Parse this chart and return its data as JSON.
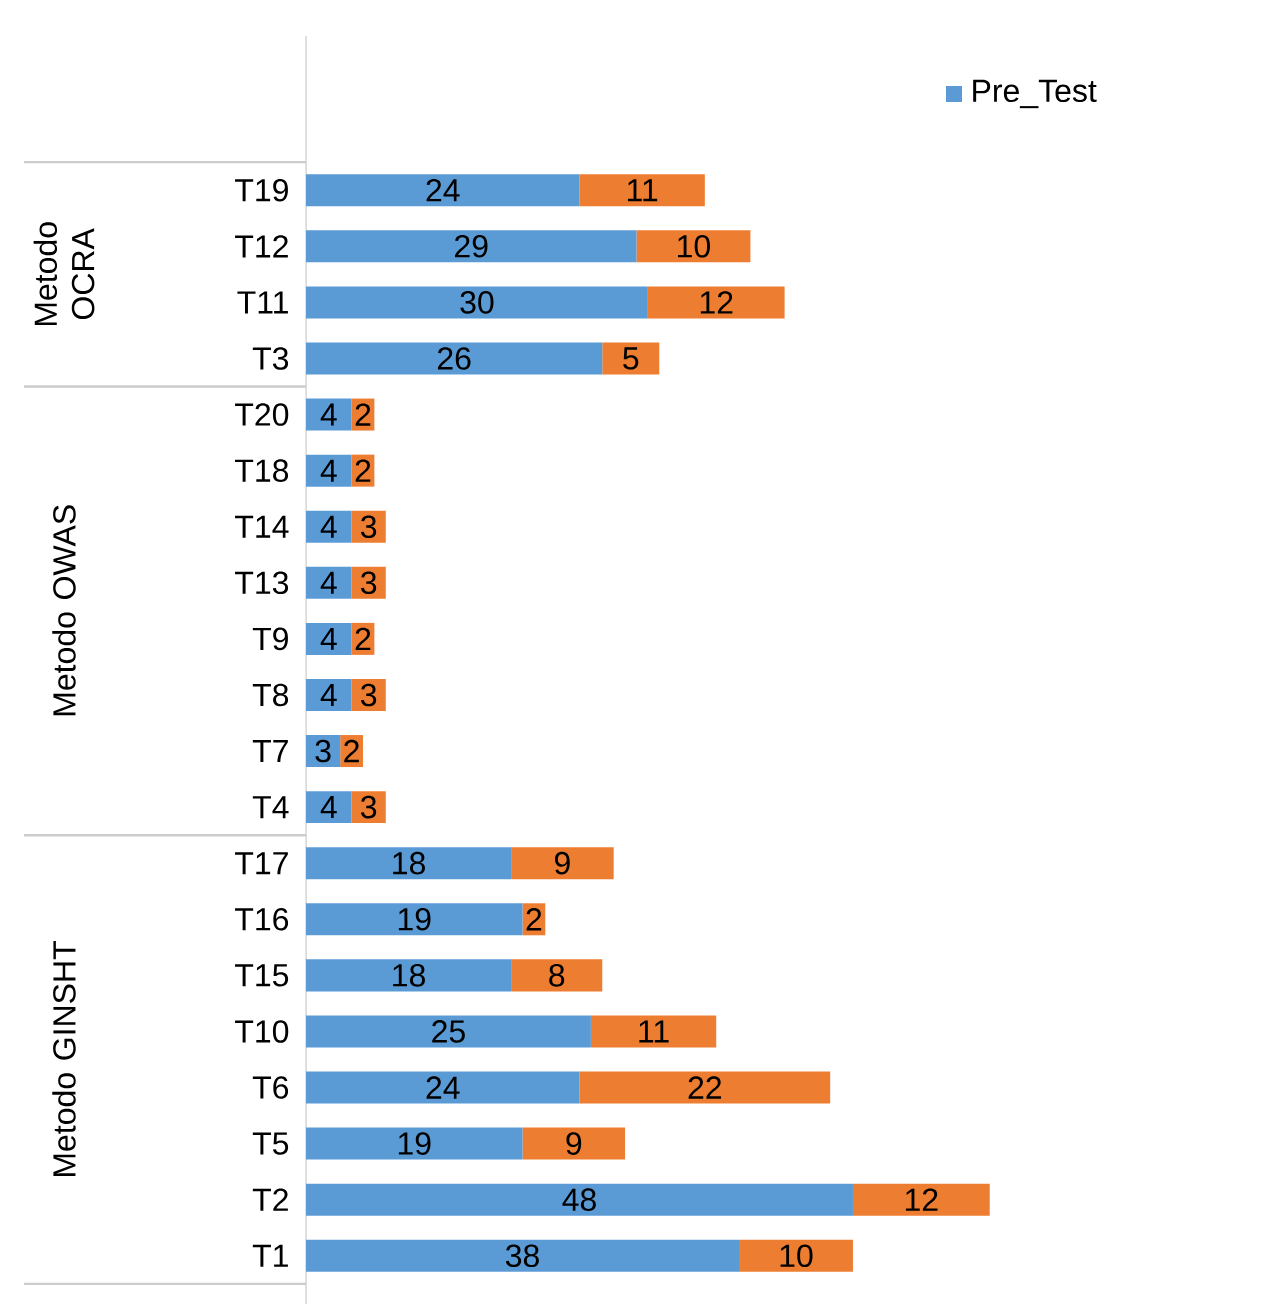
{
  "chart_data": {
    "type": "bar",
    "orientation": "horizontal",
    "stacked": true,
    "data_labels": true,
    "legend": "top right",
    "categories": [
      "T19",
      "T12",
      "T11",
      "T3",
      "T20",
      "T18",
      "T14",
      "T13",
      "T9",
      "T8",
      "T7",
      "T4",
      "T17",
      "T16",
      "T15",
      "T10",
      "T6",
      "T5",
      "T2",
      "T1"
    ],
    "series": [
      {
        "name": "Pre_Test",
        "color": "#5b9bd5",
        "values": [
          24,
          29,
          30,
          26,
          4,
          4,
          4,
          4,
          4,
          4,
          3,
          4,
          18,
          19,
          18,
          25,
          24,
          19,
          48,
          38
        ]
      },
      {
        "color": "#ed7d31",
        "values": [
          11,
          10,
          12,
          5,
          2,
          2,
          3,
          3,
          2,
          3,
          2,
          3,
          9,
          2,
          8,
          11,
          22,
          9,
          12,
          10
        ]
      }
    ],
    "annotations": [
      "Metodo OCRA",
      "Metodo OWAS",
      "Metodo GINSHT"
    ]
  }
}
